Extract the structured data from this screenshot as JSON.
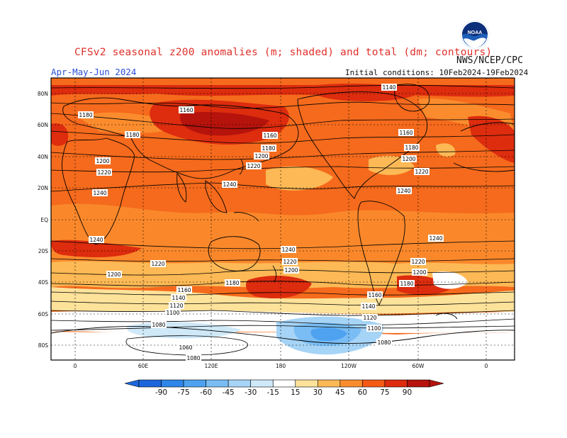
{
  "header": {
    "title": "CFSv2 seasonal z200 anomalies (m; shaded) and total (dm; contours)",
    "agency": "NWS/NCEP/CPC",
    "period": "Apr-May-Jun 2024",
    "initial_conditions": "Initial conditions: 10Feb2024-19Feb2024",
    "logo_text": "NOAA"
  },
  "axes": {
    "lat_ticks": [
      "80N",
      "60N",
      "40N",
      "20N",
      "EQ",
      "20S",
      "40S",
      "60S",
      "80S"
    ],
    "lon_ticks": [
      "0",
      "60E",
      "120E",
      "180",
      "120W",
      "60W",
      "0"
    ]
  },
  "contour_labels": [
    {
      "text": "1140",
      "lon_ticks_ref": "near top center-right"
    },
    {
      "text": "1160"
    },
    {
      "text": "1180"
    },
    {
      "text": "1200"
    },
    {
      "text": "1220"
    },
    {
      "text": "1240"
    },
    {
      "text": "1160"
    },
    {
      "text": "1140"
    },
    {
      "text": "1120"
    },
    {
      "text": "1100"
    },
    {
      "text": "1080"
    },
    {
      "text": "1060"
    }
  ],
  "colorbar": {
    "ticks": [
      "-90",
      "-75",
      "-60",
      "-45",
      "-30",
      "-15",
      "15",
      "30",
      "45",
      "60",
      "75",
      "90"
    ],
    "colors": [
      "#1c66dc",
      "#2e86e8",
      "#4fa2f0",
      "#79bdf4",
      "#a6d4f6",
      "#cfe9f8",
      "#ffffff",
      "#fde29a",
      "#fdb955",
      "#fb8c2d",
      "#f45a16",
      "#dd2c0e",
      "#b5130c"
    ]
  },
  "legend_colors": {
    "ocean_shade_main": "#f56a1c",
    "warm_high": "#d93210",
    "warm_top": "#a8190c",
    "cool_pale": "#cfe9f8",
    "cool_mid": "#79bdf4",
    "cool_strong": "#2e86e8"
  }
}
